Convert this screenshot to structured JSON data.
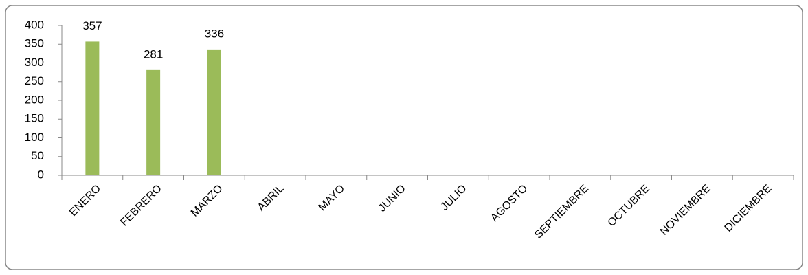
{
  "chart_data": {
    "type": "bar",
    "categories": [
      "ENERO",
      "FEBRERO",
      "MARZO",
      "ABRIL",
      "MAYO",
      "JUNIO",
      "JULIO",
      "AGOSTO",
      "SEPTIEMBRE",
      "OCTUBRE",
      "NOVIEMBRE",
      "DICIEMBRE"
    ],
    "values": [
      357,
      281,
      336,
      null,
      null,
      null,
      null,
      null,
      null,
      null,
      null,
      null
    ],
    "color": "#9bbb59",
    "ylim": [
      0,
      400
    ],
    "yticks": [
      0,
      50,
      100,
      150,
      200,
      250,
      300,
      350,
      400
    ],
    "grid": false
  }
}
